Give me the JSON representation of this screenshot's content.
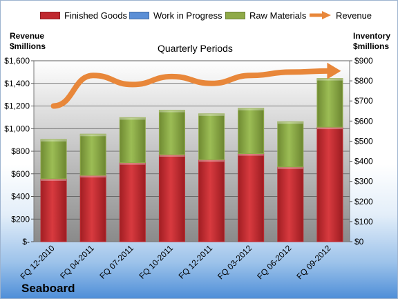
{
  "chart_data": {
    "type": "bar",
    "stacked": true,
    "title": "Quarterly Periods",
    "company": "Seaboard",
    "left_axis_label": "Revenue\n$millions",
    "right_axis_label": "Inventory\n$millions",
    "categories": [
      "FQ 12-2010",
      "FQ 04-2011",
      "FQ 07-2011",
      "FQ 10-2011",
      "FQ 12-2011",
      "FQ 03-2012",
      "FQ 06-2012",
      "FQ 09-2012"
    ],
    "left_ylim": [
      0,
      1600
    ],
    "left_ticks": [
      "$-",
      "$200",
      "$400",
      "$600",
      "$800",
      "$1,000",
      "$1,200",
      "$1,400",
      "$1,600"
    ],
    "right_ylim": [
      0,
      900
    ],
    "right_ticks": [
      "$0",
      "$100",
      "$200",
      "$300",
      "$400",
      "$500",
      "$600",
      "$700",
      "$800",
      "$900"
    ],
    "series": [
      {
        "name": "Finished Goods",
        "axis": "right",
        "color": "#c0292f",
        "values": [
          313,
          330,
          393,
          433,
          408,
          438,
          372,
          570
        ]
      },
      {
        "name": "Work in Progress",
        "axis": "right",
        "color": "#5b8fd6",
        "values": [
          0,
          0,
          0,
          0,
          0,
          0,
          0,
          0
        ]
      },
      {
        "name": "Raw Materials",
        "axis": "right",
        "color": "#8faa48",
        "values": [
          196,
          205,
          224,
          221,
          228,
          226,
          225,
          242
        ]
      }
    ],
    "line_series": {
      "name": "Revenue",
      "axis": "left",
      "color": "#e8873a",
      "values": [
        1200,
        1470,
        1390,
        1460,
        1400,
        1470,
        1500,
        1510
      ]
    },
    "grid": true,
    "legend_position": "top"
  }
}
